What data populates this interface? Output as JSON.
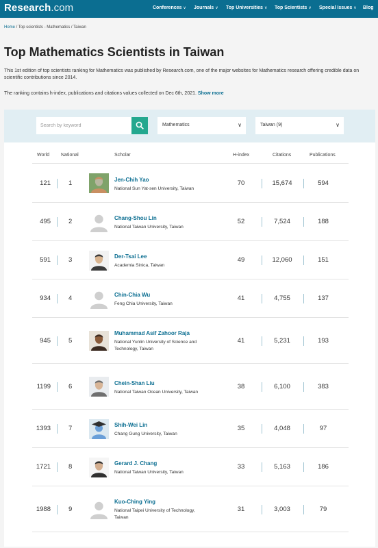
{
  "nav": {
    "logo": "Research",
    "logo_suffix": ".com",
    "items": [
      "Conferences",
      "Journals",
      "Top Universities",
      "Top Scientists",
      "Special Issues",
      "Blog"
    ]
  },
  "breadcrumb": {
    "home": "Home",
    "rest": " / Top scientists - Mathematics / Taiwan"
  },
  "title": "Top Mathematics Scientists in Taiwan",
  "description": "This 1st edition of top scientists ranking for Mathematics was published by Research.com, one of the major websites for Mathematics research offering credible data on scientific contributions since 2014.",
  "ranking_note": "The ranking contains h-index, publications and citations values collected on Dec 6th, 2021.",
  "show_more": "Show more",
  "filters": {
    "search_placeholder": "Search by keyword",
    "discipline": "Mathematics",
    "country": "Taiwan (9)"
  },
  "columns": {
    "world": "World",
    "national": "National",
    "scholar": "Scholar",
    "hindex": "H-index",
    "citations": "Citations",
    "publications": "Publications"
  },
  "scholars": [
    {
      "world": "121",
      "national": "1",
      "name": "Jen-Chih Yao",
      "institution": "National Sun Yat-sen University, Taiwan",
      "hindex": "70",
      "citations": "15,674",
      "publications": "594"
    },
    {
      "world": "495",
      "national": "2",
      "name": "Chang-Shou Lin",
      "institution": "National Taiwan University, Taiwan",
      "hindex": "52",
      "citations": "7,524",
      "publications": "188"
    },
    {
      "world": "591",
      "national": "3",
      "name": "Der-Tsai Lee",
      "institution": "Academia Sinica, Taiwan",
      "hindex": "49",
      "citations": "12,060",
      "publications": "151"
    },
    {
      "world": "934",
      "national": "4",
      "name": "Chin-Chia Wu",
      "institution": "Feng Chia University, Taiwan",
      "hindex": "41",
      "citations": "4,755",
      "publications": "137"
    },
    {
      "world": "945",
      "national": "5",
      "name": "Muhammad Asif Zahoor Raja",
      "institution": "National Yunlin University of Science and Technology, Taiwan",
      "hindex": "41",
      "citations": "5,231",
      "publications": "193"
    },
    {
      "world": "1199",
      "national": "6",
      "name": "Chein-Shan Liu",
      "institution": "National Taiwan Ocean University, Taiwan",
      "hindex": "38",
      "citations": "6,100",
      "publications": "383"
    },
    {
      "world": "1393",
      "national": "7",
      "name": "Shih-Wei Lin",
      "institution": "Chang Gung University, Taiwan",
      "hindex": "35",
      "citations": "4,048",
      "publications": "97"
    },
    {
      "world": "1721",
      "national": "8",
      "name": "Gerard J. Chang",
      "institution": "National Taiwan University, Taiwan",
      "hindex": "33",
      "citations": "5,163",
      "publications": "186"
    },
    {
      "world": "1988",
      "national": "9",
      "name": "Kuo-Ching Ying",
      "institution": "National Taipei University of Technology, Taiwan",
      "hindex": "31",
      "citations": "3,003",
      "publications": "79"
    }
  ],
  "colors": {
    "brand": "#0b6e91",
    "accent": "#24a88f"
  }
}
